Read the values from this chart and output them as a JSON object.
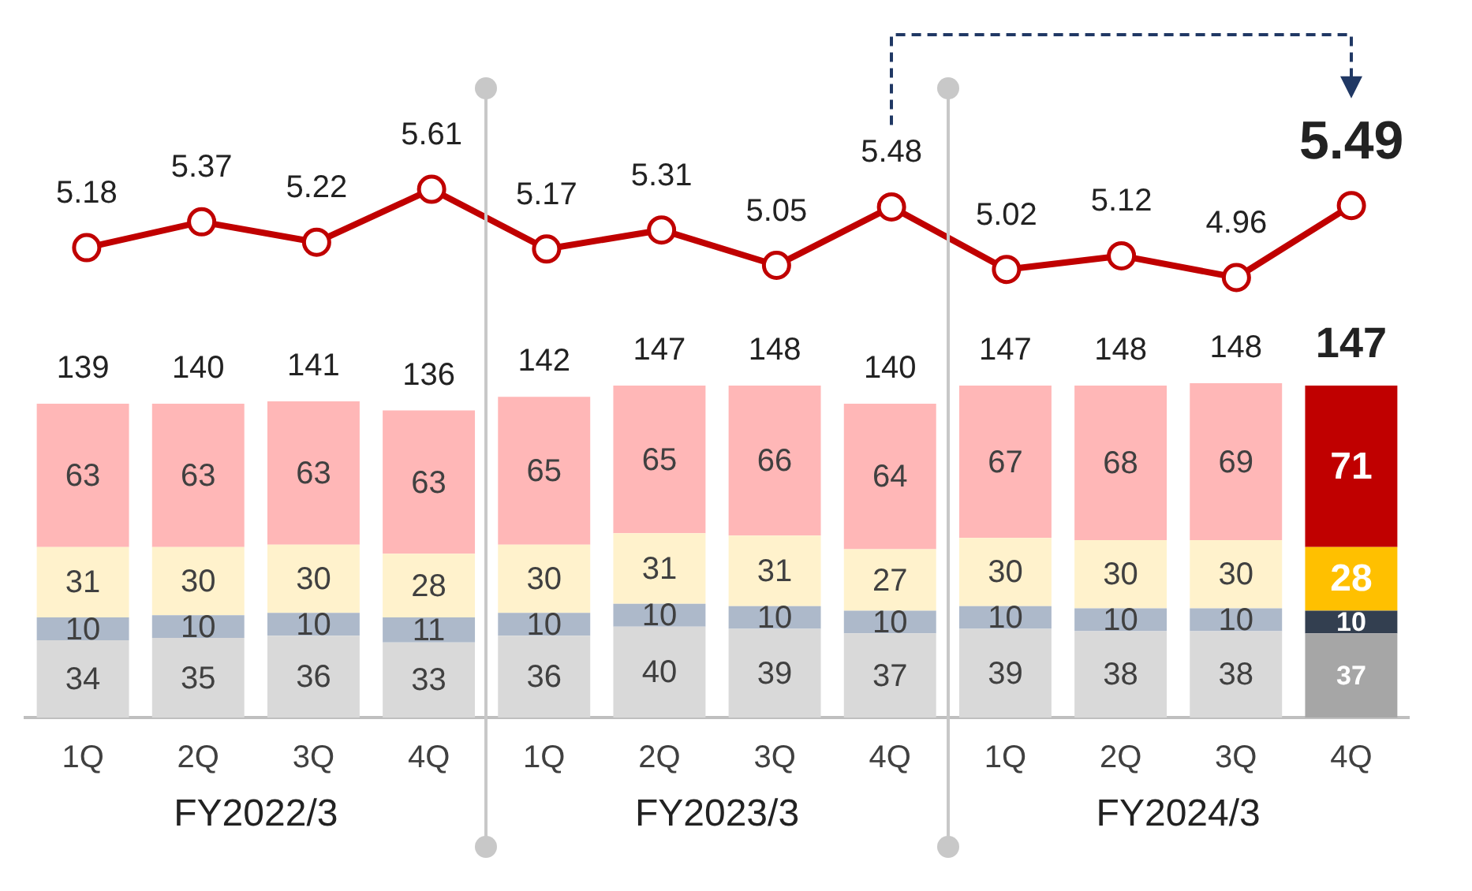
{
  "chart_data": [
    {
      "type": "line",
      "categories": [
        null,
        null,
        null,
        null,
        null,
        null,
        null,
        null,
        null,
        null,
        null,
        null
      ],
      "series": [
        {
          "color": "#c00000",
          "marker": "circle",
          "values": [
            5.18,
            5.37,
            5.22,
            5.61,
            5.17,
            5.31,
            5.05,
            5.48,
            5.02,
            5.12,
            4.96,
            5.49
          ]
        }
      ],
      "data_labels": true,
      "tick_labels": false,
      "grid": false,
      "legend": false
    },
    {
      "type": "bar",
      "stacked": true,
      "categories": [
        "1Q",
        "2Q",
        "3Q",
        "4Q",
        "1Q",
        "2Q",
        "3Q",
        "4Q",
        "1Q",
        "2Q",
        "3Q",
        "4Q"
      ],
      "series": [
        {
          "values": [
            34,
            35,
            36,
            33,
            36,
            40,
            39,
            37,
            39,
            38,
            38,
            37
          ],
          "colors": [
            "#d9d9d9",
            "#d9d9d9",
            "#d9d9d9",
            "#d9d9d9",
            "#d9d9d9",
            "#d9d9d9",
            "#d9d9d9",
            "#d9d9d9",
            "#d9d9d9",
            "#d9d9d9",
            "#d9d9d9",
            "#a6a6a6"
          ]
        },
        {
          "values": [
            10,
            10,
            10,
            11,
            10,
            10,
            10,
            10,
            10,
            10,
            10,
            10
          ],
          "colors": [
            "#adb9ca",
            "#adb9ca",
            "#adb9ca",
            "#adb9ca",
            "#adb9ca",
            "#adb9ca",
            "#adb9ca",
            "#adb9ca",
            "#adb9ca",
            "#adb9ca",
            "#adb9ca",
            "#333f50"
          ]
        },
        {
          "values": [
            31,
            30,
            30,
            28,
            30,
            31,
            31,
            27,
            30,
            30,
            30,
            28
          ],
          "colors": [
            "#fff2cc",
            "#fff2cc",
            "#fff2cc",
            "#fff2cc",
            "#fff2cc",
            "#fff2cc",
            "#fff2cc",
            "#fff2cc",
            "#fff2cc",
            "#fff2cc",
            "#fff2cc",
            "#ffc000"
          ]
        },
        {
          "values": [
            63,
            63,
            63,
            63,
            65,
            65,
            66,
            64,
            67,
            68,
            69,
            71
          ],
          "colors": [
            "#ffb7b7",
            "#ffb7b7",
            "#ffb7b7",
            "#ffb7b7",
            "#ffb7b7",
            "#ffb7b7",
            "#ffb7b7",
            "#ffb7b7",
            "#ffb7b7",
            "#ffb7b7",
            "#ffb7b7",
            "#c00000"
          ]
        }
      ],
      "totals": [
        "139",
        "140",
        "141",
        "136",
        "142",
        "147",
        "148",
        "140",
        "147",
        "148",
        "148",
        "147"
      ],
      "data_labels": true,
      "annotations": [
        "FY2022/3",
        "FY2023/3",
        "FY2024/3"
      ],
      "tick_labels": "x",
      "grid": false,
      "legend": false
    }
  ]
}
